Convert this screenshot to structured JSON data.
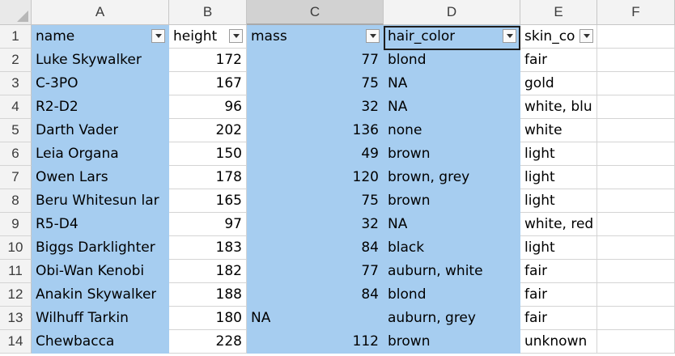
{
  "columns": [
    "A",
    "B",
    "C",
    "D",
    "E",
    "F"
  ],
  "selected_column": "C",
  "headers": [
    "name",
    "height",
    "mass",
    "hair_color",
    "skin_co"
  ],
  "rows": [
    {
      "num": "1"
    },
    {
      "num": "2",
      "name": "Luke Skywalker",
      "height": "172",
      "mass": "77",
      "hair_color": "blond",
      "skin_color": "fair"
    },
    {
      "num": "3",
      "name": "C-3PO",
      "height": "167",
      "mass": "75",
      "hair_color": "NA",
      "skin_color": "gold"
    },
    {
      "num": "4",
      "name": "R2-D2",
      "height": "96",
      "mass": "32",
      "hair_color": "NA",
      "skin_color": "white, blue"
    },
    {
      "num": "5",
      "name": "Darth Vader",
      "height": "202",
      "mass": "136",
      "hair_color": "none",
      "skin_color": "white"
    },
    {
      "num": "6",
      "name": "Leia Organa",
      "height": "150",
      "mass": "49",
      "hair_color": "brown",
      "skin_color": "light"
    },
    {
      "num": "7",
      "name": "Owen Lars",
      "height": "178",
      "mass": "120",
      "hair_color": "brown, grey",
      "skin_color": "light"
    },
    {
      "num": "8",
      "name": "Beru Whitesun lar",
      "height": "165",
      "mass": "75",
      "hair_color": "brown",
      "skin_color": "light"
    },
    {
      "num": "9",
      "name": "R5-D4",
      "height": "97",
      "mass": "32",
      "hair_color": "NA",
      "skin_color": "white, red"
    },
    {
      "num": "10",
      "name": "Biggs Darklighter",
      "height": "183",
      "mass": "84",
      "hair_color": "black",
      "skin_color": "light"
    },
    {
      "num": "11",
      "name": "Obi-Wan Kenobi",
      "height": "182",
      "mass": "77",
      "hair_color": "auburn, white",
      "skin_color": "fair"
    },
    {
      "num": "12",
      "name": "Anakin Skywalker",
      "height": "188",
      "mass": "84",
      "hair_color": "blond",
      "skin_color": "fair"
    },
    {
      "num": "13",
      "name": "Wilhuff Tarkin",
      "height": "180",
      "mass": "NA",
      "hair_color": "auburn, grey",
      "skin_color": "fair"
    },
    {
      "num": "14",
      "name": "Chewbacca",
      "height": "228",
      "mass": "112",
      "hair_color": "brown",
      "skin_color": "unknown"
    }
  ],
  "colors": {
    "selection": "#a6cdf0",
    "header_bg": "#f3f3f3",
    "selected_header_bg": "#d2d2d2",
    "gridline": "#d4d4d4"
  }
}
